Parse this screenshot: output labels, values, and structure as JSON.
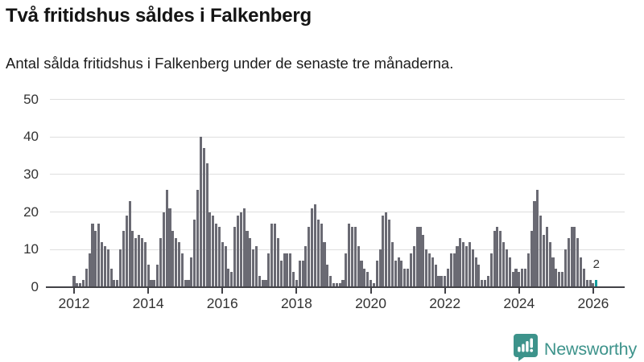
{
  "header": {
    "title": "Två fritidshus såldes i Falkenberg",
    "subtitle": "Antal sålda fritidshus i Falkenberg under de senaste tre månaderna."
  },
  "chart_data": {
    "type": "bar",
    "title": "Två fritidshus såldes i Falkenberg",
    "subtitle": "Antal sålda fritidshus i Falkenberg under de senaste tre månaderna.",
    "x_unit": "month",
    "start": "2012-01",
    "end": "2026-02",
    "values": [
      3,
      1,
      1,
      2,
      5,
      9,
      17,
      15,
      17,
      12,
      11,
      10,
      5,
      2,
      2,
      10,
      15,
      19,
      23,
      15,
      13,
      14,
      13,
      12,
      6,
      2,
      2,
      6,
      13,
      20,
      26,
      21,
      15,
      13,
      12,
      9,
      2,
      2,
      8,
      18,
      26,
      40,
      37,
      33,
      20,
      19,
      17,
      16,
      12,
      11,
      5,
      4,
      16,
      19,
      20,
      21,
      15,
      13,
      10,
      11,
      3,
      2,
      2,
      9,
      17,
      17,
      13,
      7,
      9,
      9,
      9,
      4,
      2,
      7,
      7,
      11,
      16,
      21,
      22,
      18,
      17,
      12,
      6,
      3,
      1,
      1,
      1,
      2,
      9,
      17,
      16,
      16,
      11,
      7,
      5,
      4,
      2,
      1,
      7,
      10,
      19,
      20,
      18,
      12,
      7,
      8,
      7,
      5,
      5,
      9,
      11,
      16,
      16,
      14,
      10,
      9,
      8,
      6,
      3,
      3,
      3,
      5,
      9,
      9,
      11,
      13,
      12,
      11,
      12,
      10,
      8,
      6,
      2,
      2,
      3,
      9,
      15,
      16,
      15,
      12,
      10,
      8,
      4,
      5,
      4,
      5,
      5,
      9,
      15,
      23,
      26,
      19,
      14,
      16,
      12,
      8,
      5,
      4,
      4,
      10,
      13,
      16,
      16,
      13,
      8,
      5,
      2,
      2,
      1,
      2
    ],
    "highlight_index": 169,
    "last_value_label": "2",
    "ylim": [
      0,
      50
    ],
    "yticks": [
      0,
      10,
      20,
      30,
      40,
      50
    ],
    "xtick_years": [
      2012,
      2014,
      2016,
      2018,
      2020,
      2022,
      2024,
      2026
    ],
    "grid": "horizontal",
    "legend": "none",
    "bar_color": "#6a6a73",
    "highlight_color": "#149c9c",
    "grid_color": "#dedede",
    "axis_color": "#424247",
    "tick_text_color": "#333333"
  },
  "branding": {
    "logo_text": "Newsworthy",
    "logo_color": "#3d938b",
    "logo_icon": "bar-chart-speech-bubble-icon"
  }
}
